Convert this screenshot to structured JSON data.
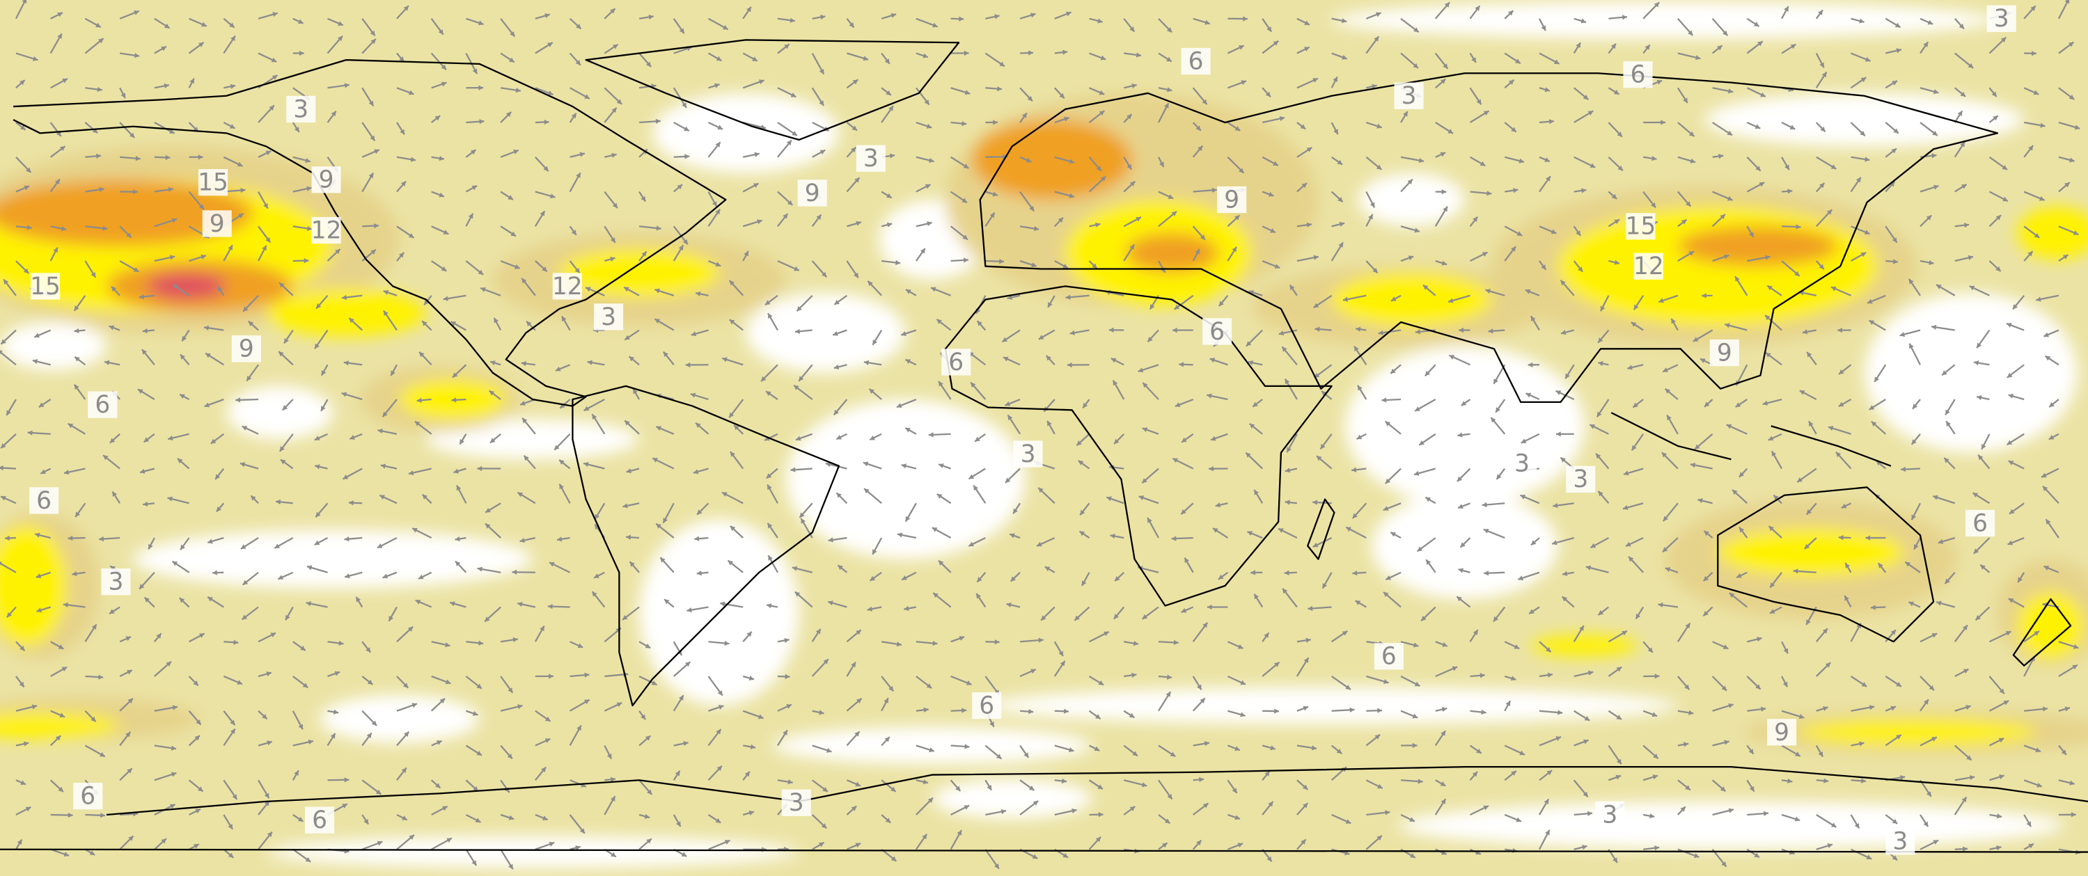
{
  "map": {
    "contour_labels": [
      3,
      6,
      3,
      6,
      3,
      3,
      15,
      9,
      9,
      9,
      12,
      9,
      15,
      12,
      15,
      12,
      3,
      6,
      9,
      9,
      6,
      6,
      3,
      3,
      3,
      6,
      6,
      3,
      6,
      6,
      9,
      6,
      3,
      6,
      3,
      3
    ]
  }
}
